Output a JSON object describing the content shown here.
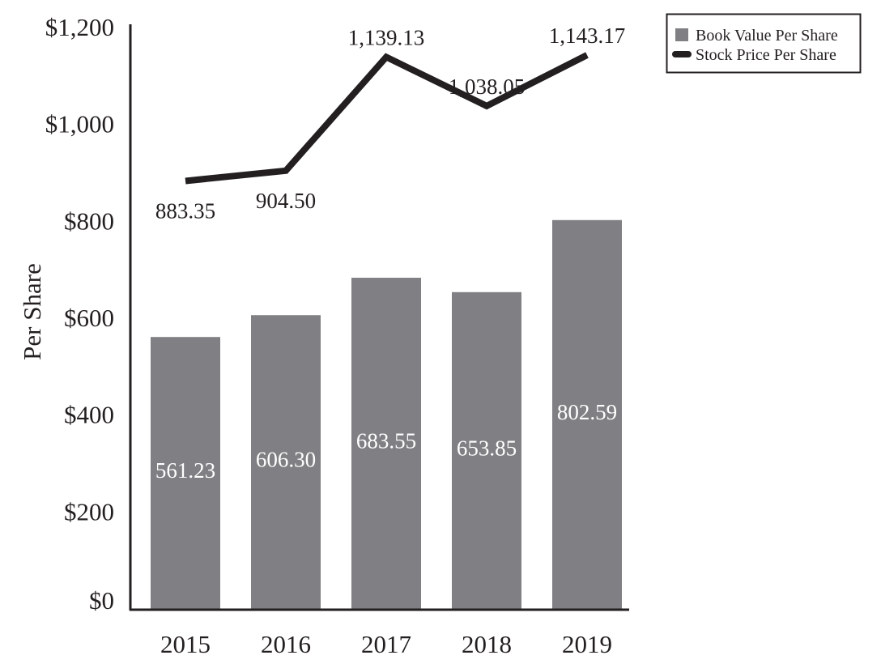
{
  "chart_data": {
    "type": "bar+line",
    "ylabel": "Per Share",
    "xlabel": "",
    "ylim": [
      0,
      1200
    ],
    "y_ticks": [
      "$0",
      "$200",
      "$400",
      "$600",
      "$800",
      "$1,000",
      "$1,200"
    ],
    "y_tick_values": [
      0,
      200,
      400,
      600,
      800,
      1000,
      1200
    ],
    "categories": [
      "2015",
      "2016",
      "2017",
      "2018",
      "2019"
    ],
    "grid": false,
    "legend_placement": "top-right, outside",
    "series": [
      {
        "name": "Book Value Per Share",
        "type": "bar",
        "color": "#808084",
        "values": [
          561.23,
          606.3,
          683.55,
          653.85,
          802.59
        ],
        "labels": [
          "561.23",
          "606.30",
          "683.55",
          "653.85",
          "802.59"
        ]
      },
      {
        "name": "Stock Price Per Share",
        "type": "line",
        "color": "#231f20",
        "values": [
          883.35,
          904.5,
          1139.13,
          1038.05,
          1143.17
        ],
        "labels": [
          "883.35",
          "904.50",
          "1,139.13",
          "1,038.05",
          "1,143.17"
        ]
      }
    ]
  }
}
